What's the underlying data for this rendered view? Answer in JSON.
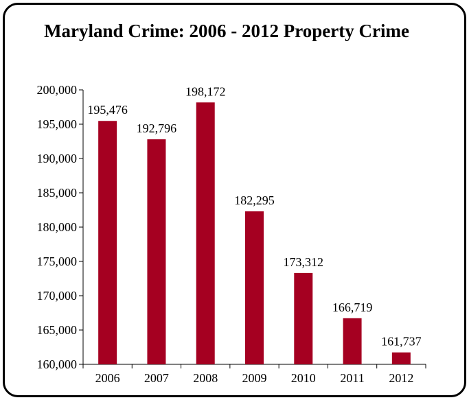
{
  "chart_data": {
    "type": "bar",
    "title": "Maryland Crime: 2006 - 2012 Property Crime",
    "xlabel": "",
    "ylabel": "",
    "categories": [
      "2006",
      "2007",
      "2008",
      "2009",
      "2010",
      "2011",
      "2012"
    ],
    "values": [
      195476,
      192796,
      198172,
      182295,
      173312,
      166719,
      161737
    ],
    "data_labels": [
      "195,476",
      "192,796",
      "198,172",
      "182,295",
      "173,312",
      "166,719",
      "161,737"
    ],
    "ylim": [
      160000,
      200000
    ],
    "yticks": [
      160000,
      165000,
      170000,
      175000,
      180000,
      185000,
      190000,
      195000,
      200000
    ],
    "ytick_labels": [
      "160,000",
      "165,000",
      "170,000",
      "175,000",
      "180,000",
      "185,000",
      "190,000",
      "195,000",
      "200,000"
    ],
    "grid": false,
    "legend": "none",
    "bar_color": "#A50021"
  }
}
